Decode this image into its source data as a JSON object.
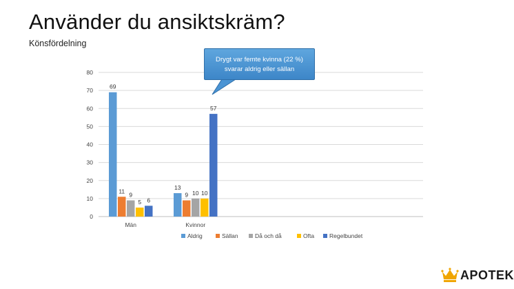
{
  "header": {
    "title": "Använder du ansiktskräm?",
    "subtitle": "Könsfördelning"
  },
  "callout": {
    "line1": "Drygt var femte kvinna (22 %)",
    "line2": "svarar aldrig eller sällan",
    "color": "#4a94d4"
  },
  "logo": {
    "text": "APOTEK",
    "crown_color": "#f0a500"
  },
  "chart_data": {
    "type": "bar",
    "categories": [
      "Män",
      "Kvinnor"
    ],
    "series": [
      {
        "name": "Aldrig",
        "values": [
          69,
          13
        ],
        "color": "#5b9bd5"
      },
      {
        "name": "Sällan",
        "values": [
          11,
          9
        ],
        "color": "#ed7d31"
      },
      {
        "name": "Då och då",
        "values": [
          9,
          10
        ],
        "color": "#a5a5a5"
      },
      {
        "name": "Ofta",
        "values": [
          5,
          10
        ],
        "color": "#ffc000"
      },
      {
        "name": "Regelbundet",
        "values": [
          6,
          57
        ],
        "color": "#4472c4"
      }
    ],
    "ylim": [
      0,
      80
    ],
    "yticks": [
      0,
      10,
      20,
      30,
      40,
      50,
      60,
      70,
      80
    ],
    "grid": true,
    "legend": "bottom",
    "xlabel": "",
    "ylabel": ""
  }
}
